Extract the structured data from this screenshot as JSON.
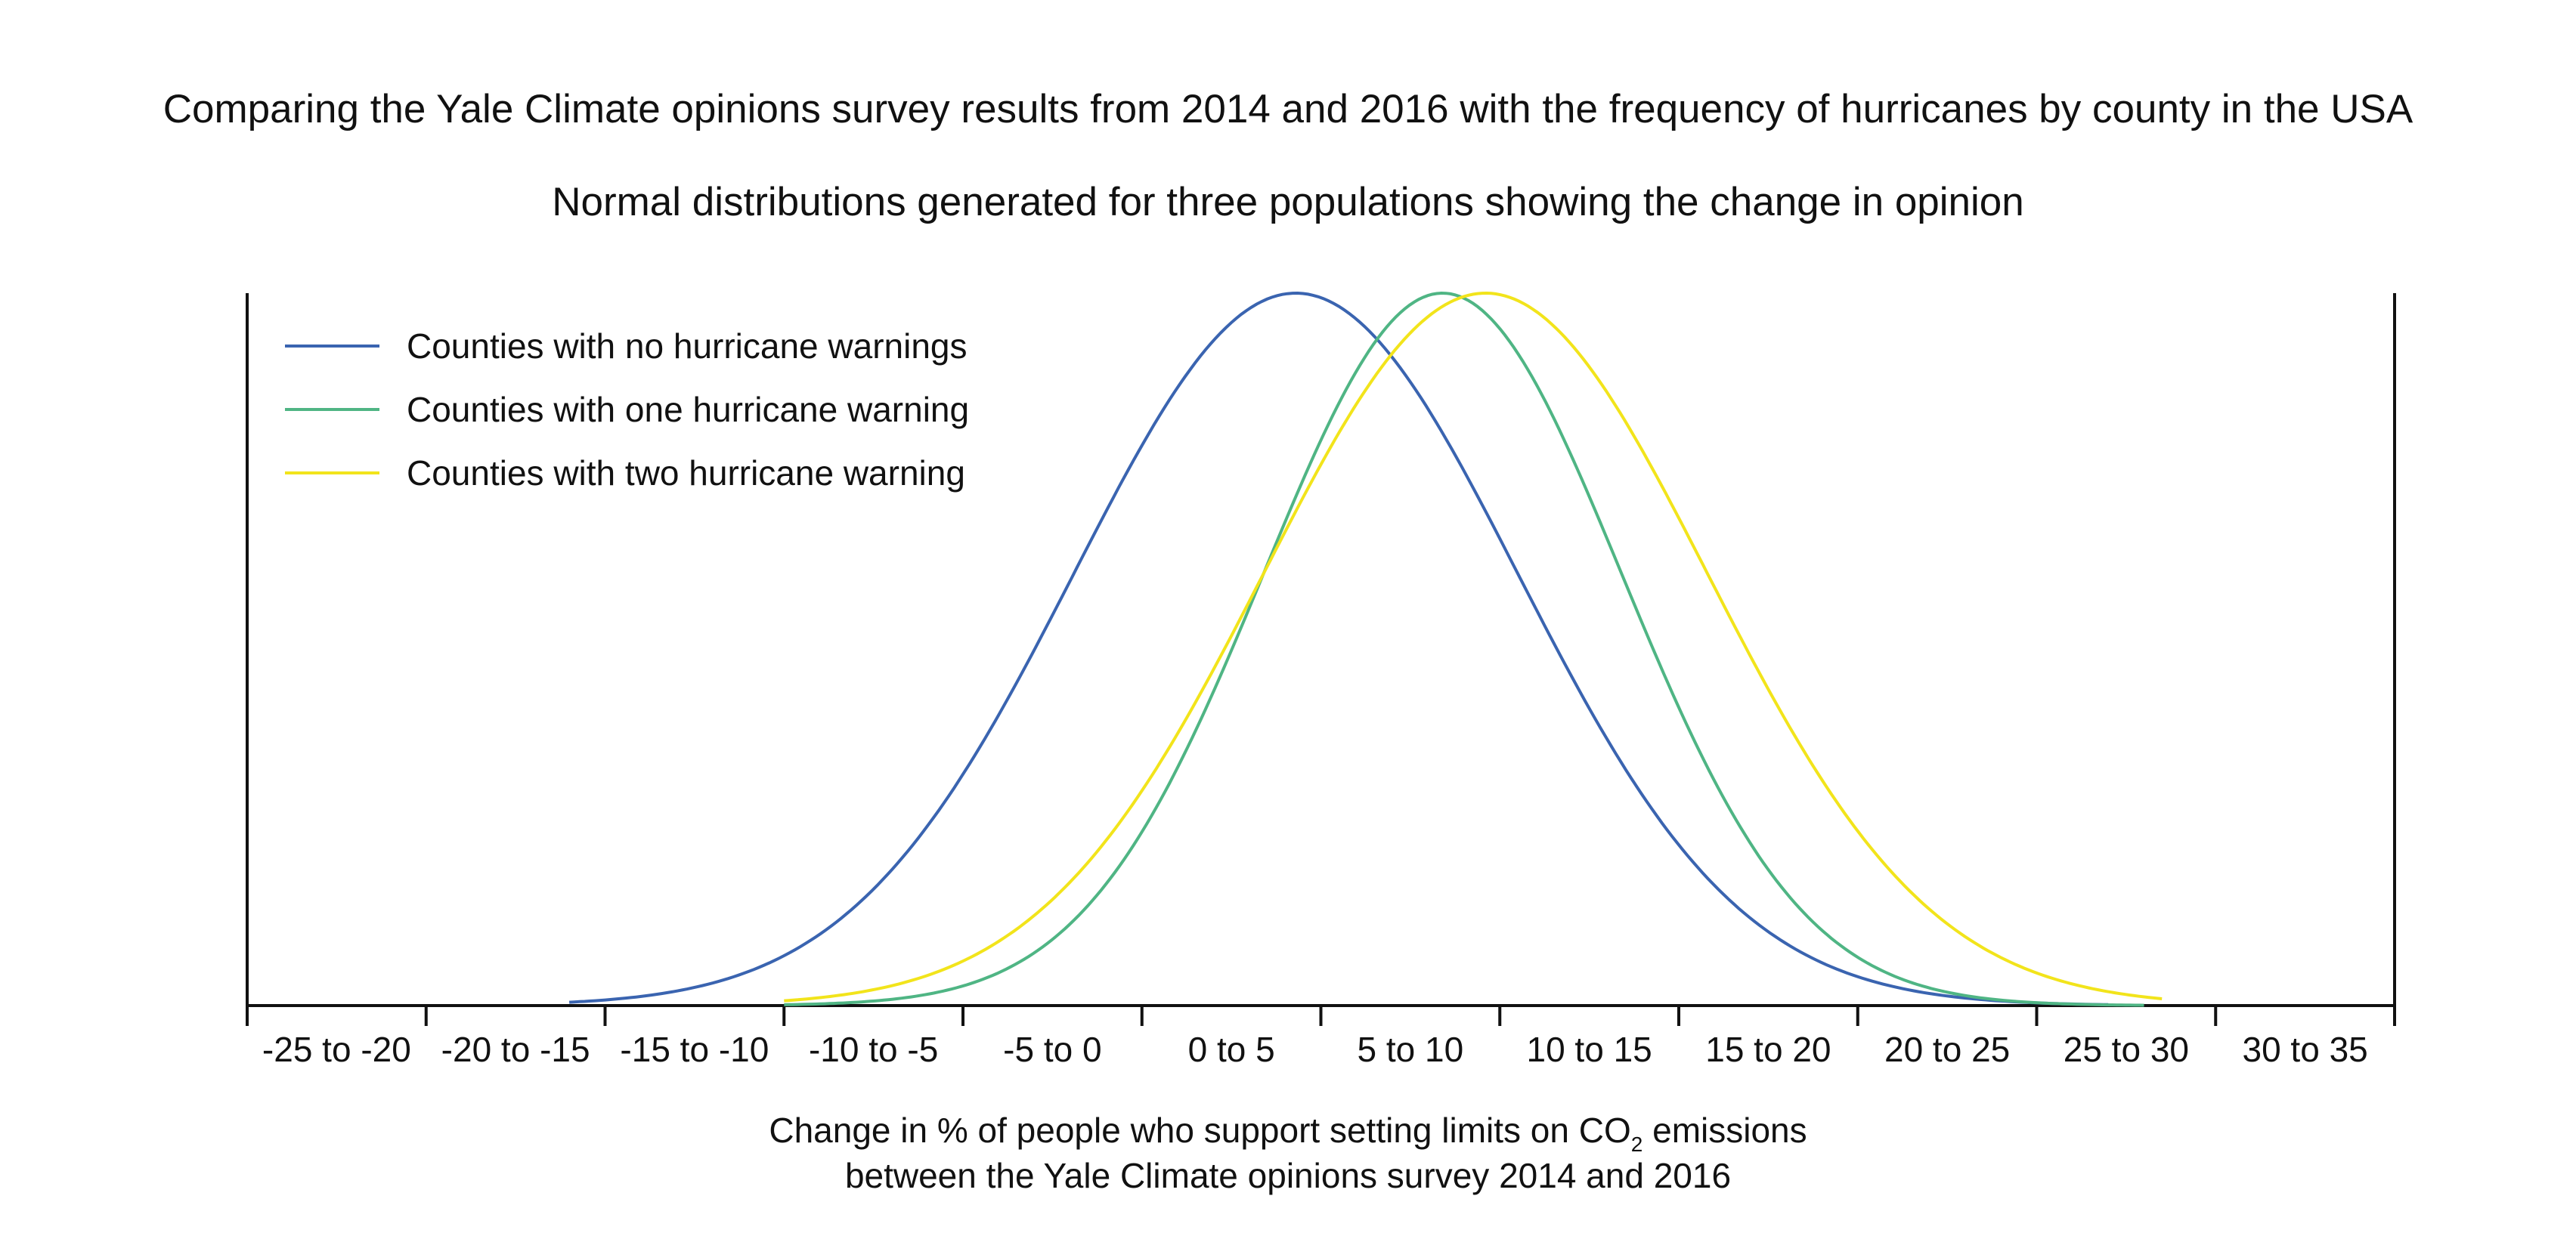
{
  "chart_data": {
    "type": "line",
    "title": "Comparing the Yale Climate opinions survey results from 2014 and 2016 with the frequency of hurricanes by county in the USA",
    "subtitle": "Normal distributions generated for three populations showing the change in opinion",
    "xlabel": {
      "line1_pre": "Change in % of people who support setting limits on CO",
      "line1_sub": "2",
      "line1_post": " emissions",
      "line2": "between the Yale Climate opinions survey 2014 and 2016"
    },
    "ylabel": "",
    "xlim": [
      -25,
      35
    ],
    "categories": [
      "-25 to -20",
      "-20 to -15",
      "-15 to -10",
      "-10 to -5",
      "-5 to 0",
      "0 to 5",
      "5 to 10",
      "10 to 15",
      "15 to 20",
      "20 to 25",
      "25 to 30",
      "30 to 35"
    ],
    "legend_position": "top-left",
    "grid": false,
    "series": [
      {
        "name": "Counties with no hurricane warnings",
        "mean": 4.3,
        "sd": 6.2,
        "x_start": -16,
        "x_end": 27,
        "color": "#3a64b0"
      },
      {
        "name": "Counties with one hurricane warning",
        "mean": 8.4,
        "sd": 5.0,
        "x_start": -10,
        "x_end": 28,
        "color": "#4fb584"
      },
      {
        "name": "Counties with two hurricane warning",
        "mean": 9.6,
        "sd": 6.2,
        "x_start": -10,
        "x_end": 28.5,
        "color": "#f2e41b"
      }
    ]
  }
}
